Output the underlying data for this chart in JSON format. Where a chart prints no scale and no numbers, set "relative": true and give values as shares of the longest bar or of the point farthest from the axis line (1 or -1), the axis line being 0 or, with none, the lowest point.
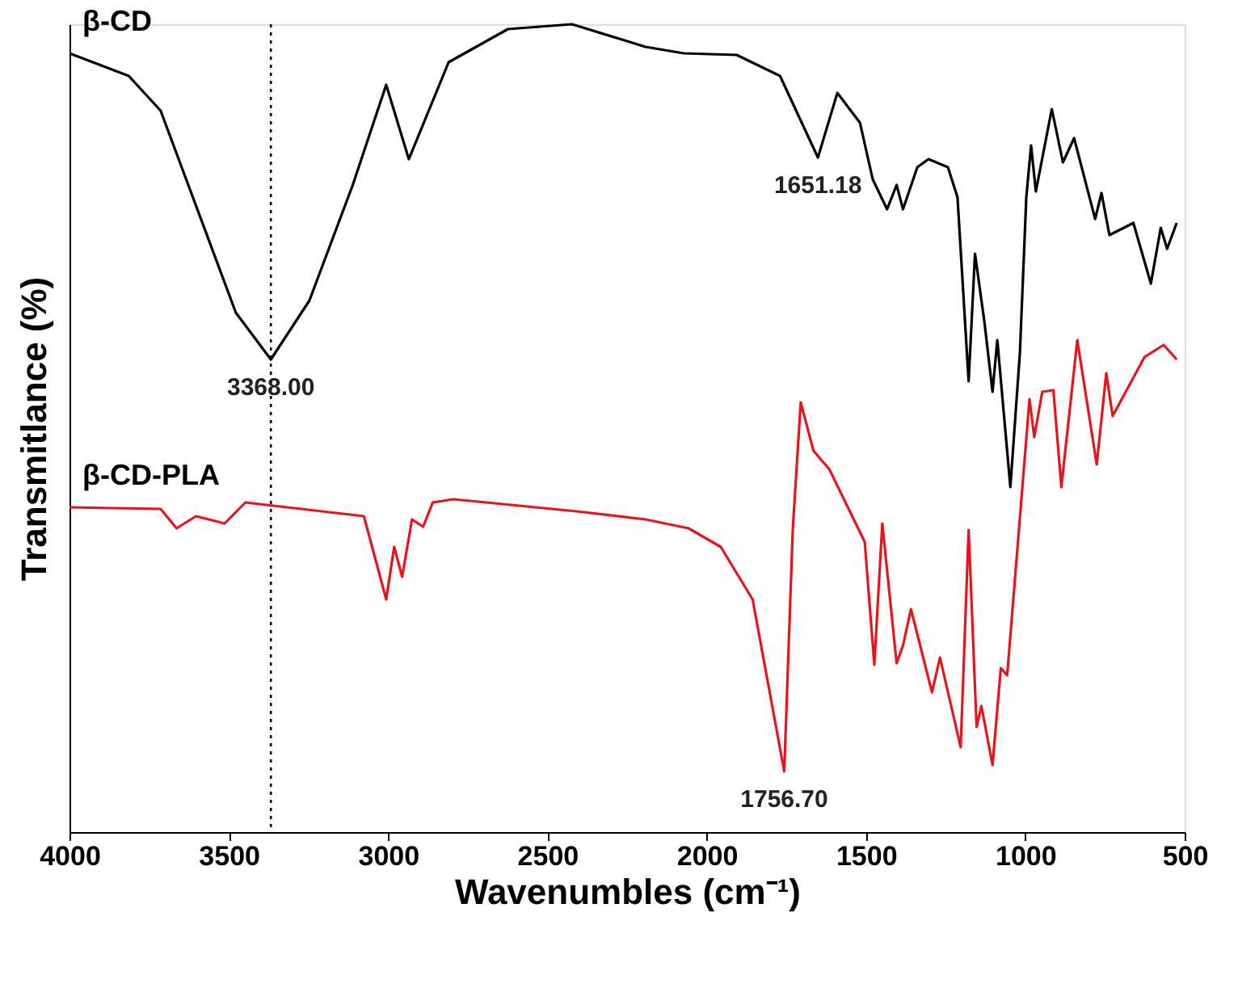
{
  "chart_data": {
    "type": "line",
    "relative": true,
    "xlabel": "Wavenumbles (cm⁻¹)",
    "ylabel": "Transmitlance (%)",
    "xlim": [
      4000,
      500
    ],
    "xticks": [
      4000,
      3500,
      3000,
      2500,
      2000,
      1500,
      1000,
      500
    ],
    "grid": false,
    "line_style": "solid",
    "marker": "none",
    "series": [
      {
        "name": "β-CD",
        "color": "#000000",
        "x": [
          4000,
          3814,
          3714,
          3613,
          3478,
          3368,
          3247,
          3111,
          3006,
          2935,
          2810,
          2624,
          2423,
          2192,
          2072,
          1906,
          1770,
          1651,
          1590,
          1519,
          1479,
          1434,
          1404,
          1384,
          1339,
          1304,
          1243,
          1213,
          1178,
          1158,
          1128,
          1103,
          1088,
          1047,
          1017,
          997,
          982,
          967,
          917,
          882,
          847,
          781,
          761,
          736,
          661,
          606,
          575,
          555,
          525
        ],
        "values": [
          0.964,
          0.936,
          0.893,
          0.786,
          0.643,
          0.585,
          0.658,
          0.801,
          0.925,
          0.833,
          0.953,
          0.994,
          1.0,
          0.972,
          0.964,
          0.962,
          0.936,
          0.835,
          0.915,
          0.878,
          0.808,
          0.771,
          0.801,
          0.771,
          0.823,
          0.833,
          0.823,
          0.786,
          0.558,
          0.716,
          0.63,
          0.545,
          0.609,
          0.427,
          0.594,
          0.786,
          0.85,
          0.793,
          0.895,
          0.829,
          0.859,
          0.759,
          0.791,
          0.739,
          0.754,
          0.679,
          0.748,
          0.722,
          0.754
        ]
      },
      {
        "name": "β-CD-PLA",
        "color": "#e8141b",
        "x": [
          4000,
          3714,
          3664,
          3603,
          3513,
          3448,
          3076,
          3006,
          2981,
          2956,
          2925,
          2890,
          2860,
          2795,
          2408,
          2192,
          2057,
          1956,
          1856,
          1756.7,
          1730,
          1705,
          1665,
          1615,
          1504,
          1474,
          1449,
          1404,
          1384,
          1359,
          1293,
          1268,
          1203,
          1178,
          1153,
          1138,
          1103,
          1077,
          1057,
          987,
          972,
          947,
          912,
          887,
          837,
          776,
          746,
          726,
          626,
          566,
          525
        ],
        "values": [
          0.402,
          0.4,
          0.376,
          0.391,
          0.382,
          0.408,
          0.391,
          0.288,
          0.353,
          0.316,
          0.387,
          0.378,
          0.408,
          0.412,
          0.397,
          0.387,
          0.376,
          0.353,
          0.288,
          0.075,
          0.374,
          0.532,
          0.472,
          0.449,
          0.359,
          0.207,
          0.382,
          0.209,
          0.231,
          0.276,
          0.173,
          0.216,
          0.105,
          0.374,
          0.13,
          0.156,
          0.083,
          0.203,
          0.194,
          0.536,
          0.489,
          0.545,
          0.547,
          0.427,
          0.609,
          0.455,
          0.568,
          0.515,
          0.588,
          0.603,
          0.585
        ]
      }
    ],
    "ref_lines": [
      {
        "axis": "x",
        "value": 3368,
        "line_style": "dotted",
        "color": "#000000"
      }
    ],
    "annotations": [
      {
        "text": "3368.00",
        "x": 3368,
        "y": 0.585
      },
      {
        "text": "1651.18",
        "x": 1651.18,
        "y": 0.835
      },
      {
        "text": "1756.70",
        "x": 1756.7,
        "y": 0.075
      }
    ]
  }
}
